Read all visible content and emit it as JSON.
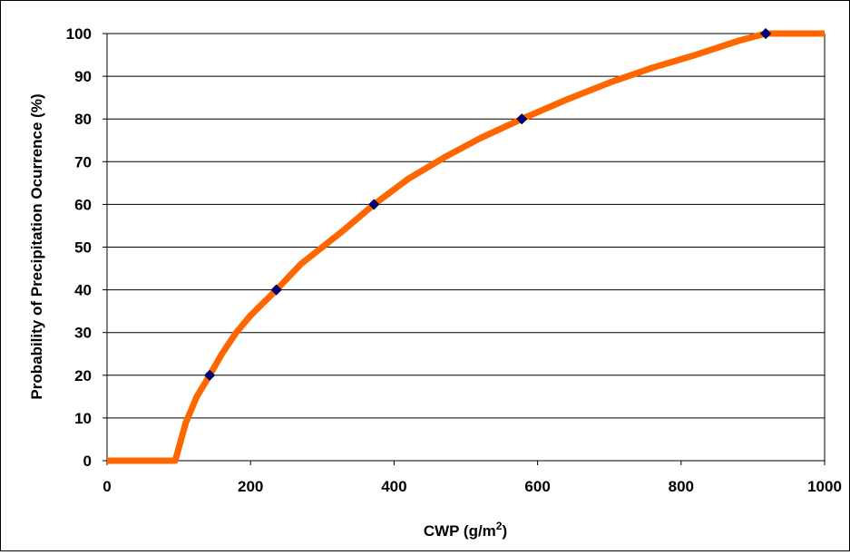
{
  "chart_data": {
    "type": "line",
    "title": "",
    "xlabel": "CWP (g/m",
    "xlabel_sup": "2",
    "xlabel_suffix": ")",
    "ylabel": "Probability of Precipitation Ocurrence (%)",
    "xlim": [
      0,
      1000
    ],
    "ylim": [
      0,
      100
    ],
    "x_ticks": [
      0,
      200,
      400,
      600,
      800,
      1000
    ],
    "y_ticks": [
      0,
      10,
      20,
      30,
      40,
      50,
      60,
      70,
      80,
      90,
      100
    ],
    "grid": "horizontal",
    "legend": "none",
    "series": [
      {
        "type": "line",
        "color": "#FF6600",
        "x": [
          0,
          95,
          110,
          125,
          143,
          160,
          180,
          200,
          236,
          270,
          300,
          330,
          372,
          420,
          470,
          520,
          578,
          640,
          700,
          760,
          820,
          880,
          918,
          1000
        ],
        "y": [
          0,
          0,
          9,
          15,
          20,
          25,
          30,
          34,
          40,
          46,
          50,
          54,
          60,
          66,
          71,
          75.5,
          80,
          84.5,
          88.5,
          92,
          95,
          98.3,
          100,
          100
        ]
      },
      {
        "type": "scatter",
        "color": "#000080",
        "marker": "diamond",
        "x": [
          143,
          236,
          372,
          578,
          918
        ],
        "y": [
          20,
          40,
          60,
          80,
          100
        ]
      }
    ]
  }
}
